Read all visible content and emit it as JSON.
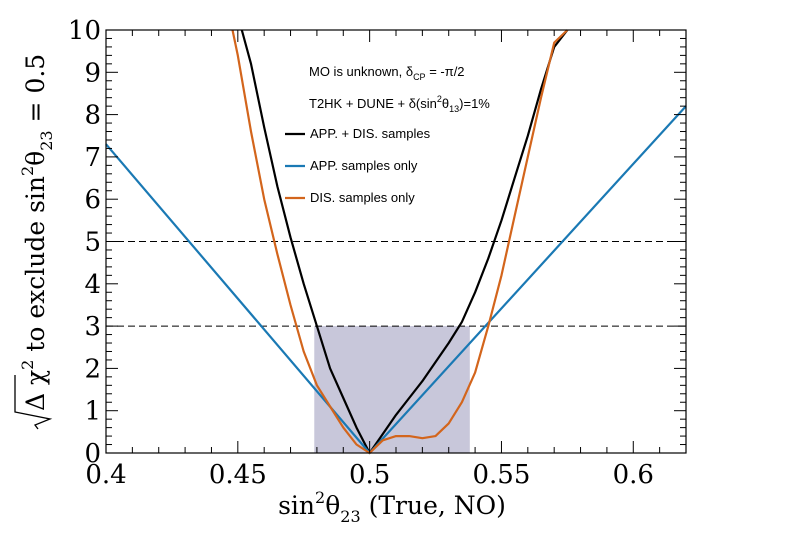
{
  "chart_data": {
    "type": "line",
    "xlabel": {
      "main": "sin",
      "sup": "2",
      "theta": "θ",
      "sub": "23",
      "tail": " (True, NO)"
    },
    "ylabel": {
      "delta": "Δ χ",
      "sup": "2",
      "mid": " to exclude sin",
      "sup2": "2",
      "theta": "θ",
      "sub": "23",
      "tail": " = 0.5"
    },
    "xlim": [
      0.4,
      0.62
    ],
    "ylim": [
      0,
      10
    ],
    "x_ticks": [
      0.4,
      0.45,
      0.5,
      0.55,
      0.6
    ],
    "x_tick_labels": [
      "0.4",
      "0.45",
      "0.5",
      "0.55",
      "0.6"
    ],
    "y_ticks": [
      0,
      1,
      2,
      3,
      4,
      5,
      6,
      7,
      8,
      9,
      10
    ],
    "y_tick_labels": [
      "0",
      "1",
      "2",
      "3",
      "4",
      "5",
      "6",
      "7",
      "8",
      "9",
      "10"
    ],
    "reference_lines": [
      3,
      5
    ],
    "shaded_band": {
      "x": [
        0.479,
        0.538
      ],
      "y": [
        0,
        3
      ],
      "color": "#c8c7da"
    },
    "annotations": {
      "line1": {
        "pre": "MO is unknown, δ",
        "sub": "CP",
        "post": " = -π/2"
      },
      "line2": {
        "pre": "T2HK + DUNE + δ(sin",
        "sup": "2",
        "mid": "θ",
        "sub": "13",
        "post": ")=1%"
      }
    },
    "legend_position": "top-center",
    "series": [
      {
        "name": "APP. + DIS. samples",
        "color": "#000000",
        "x": [
          0.4515,
          0.455,
          0.46,
          0.465,
          0.47,
          0.475,
          0.48,
          0.485,
          0.49,
          0.495,
          0.5,
          0.505,
          0.51,
          0.515,
          0.52,
          0.525,
          0.53,
          0.535,
          0.54,
          0.545,
          0.55,
          0.555,
          0.56,
          0.565,
          0.57,
          0.575
        ],
        "y": [
          10,
          9.2,
          7.7,
          6.3,
          5.1,
          4.0,
          3.0,
          2.0,
          1.3,
          0.6,
          0.0,
          0.45,
          0.9,
          1.3,
          1.7,
          2.15,
          2.6,
          3.1,
          3.8,
          4.6,
          5.5,
          6.5,
          7.5,
          8.6,
          9.6,
          10
        ]
      },
      {
        "name": "APP. samples only",
        "color": "#1a79b4",
        "x": [
          0.4,
          0.5,
          0.62
        ],
        "y": [
          7.3,
          0.0,
          8.2
        ]
      },
      {
        "name": "DIS. samples only",
        "color": "#d3651c",
        "x": [
          0.448,
          0.45,
          0.455,
          0.46,
          0.465,
          0.47,
          0.475,
          0.48,
          0.485,
          0.49,
          0.495,
          0.5,
          0.505,
          0.51,
          0.515,
          0.52,
          0.525,
          0.53,
          0.535,
          0.54,
          0.545,
          0.55,
          0.555,
          0.56,
          0.565,
          0.57,
          0.575
        ],
        "y": [
          10,
          9.4,
          7.6,
          6.0,
          4.7,
          3.5,
          2.4,
          1.6,
          1.1,
          0.6,
          0.2,
          0.0,
          0.3,
          0.4,
          0.4,
          0.35,
          0.4,
          0.7,
          1.2,
          1.9,
          3.0,
          4.2,
          5.6,
          7.0,
          8.4,
          9.7,
          10
        ]
      }
    ]
  }
}
